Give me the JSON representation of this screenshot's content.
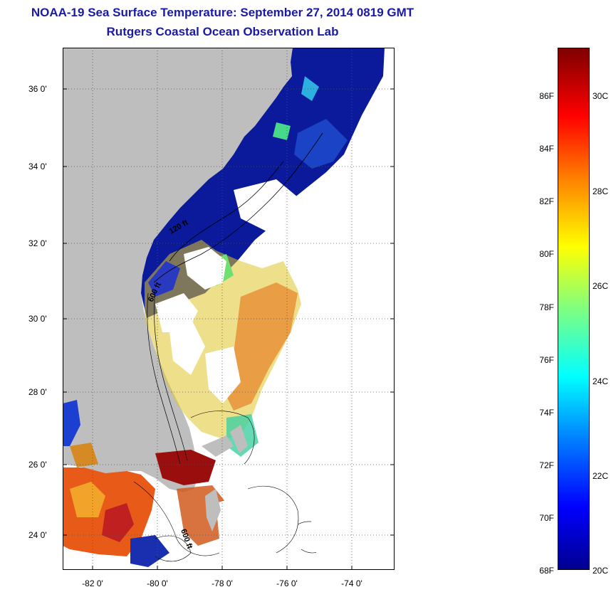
{
  "title_line1": "NOAA-19 Sea Surface Temperature:  September 27, 2014 0819 GMT",
  "title_line2": "Rutgers Coastal Ocean Observation Lab",
  "lat_ticks": [
    "36 0'",
    "34 0'",
    "32 0'",
    "30 0'",
    "28 0'",
    "26 0'",
    "24 0'"
  ],
  "lon_ticks": [
    "-82 0'",
    "-80 0'",
    "-78 0'",
    "-76 0'",
    "-74 0'"
  ],
  "contour_labels": [
    "120 ft",
    "600 ft",
    "600 ft"
  ],
  "colorbar": {
    "f_labels": [
      "86F",
      "84F",
      "82F",
      "80F",
      "78F",
      "76F",
      "74F",
      "72F",
      "70F",
      "68F"
    ],
    "c_labels": [
      "30C",
      "28C",
      "26C",
      "24C",
      "22C",
      "20C"
    ],
    "colors": [
      "#7f0000",
      "#ff0000",
      "#ff8000",
      "#ffff00",
      "#80ff80",
      "#00ffff",
      "#0080ff",
      "#0000ff",
      "#00008f"
    ]
  },
  "colors": {
    "land": "#bebebe",
    "cold_water": "#0a1a9a",
    "title": "#1a1aa6"
  }
}
